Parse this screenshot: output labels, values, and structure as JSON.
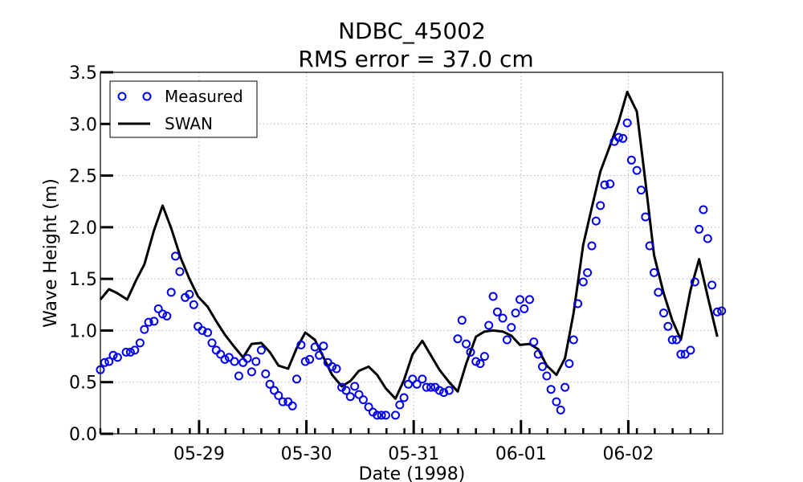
{
  "chart_data": {
    "type": "line",
    "title": "NDBC_45002",
    "subtitle": "RMS error = 37.0 cm",
    "xlabel": "Date (1998)",
    "ylabel": "Wave Height (m)",
    "xlim": [
      0.0,
      5.8
    ],
    "ylim": [
      0.0,
      3.5
    ],
    "x_ticks": [
      {
        "value": 0.92,
        "label": "05-29"
      },
      {
        "value": 1.92,
        "label": "05-30"
      },
      {
        "value": 2.92,
        "label": "05-31"
      },
      {
        "value": 3.92,
        "label": "06-01"
      },
      {
        "value": 4.92,
        "label": "06-02"
      }
    ],
    "y_ticks": [
      {
        "value": 0.0,
        "label": "0.0"
      },
      {
        "value": 0.5,
        "label": "0.5"
      },
      {
        "value": 1.0,
        "label": "1.0"
      },
      {
        "value": 1.5,
        "label": "1.5"
      },
      {
        "value": 2.0,
        "label": "2.0"
      },
      {
        "value": 2.5,
        "label": "2.5"
      },
      {
        "value": 3.0,
        "label": "3.0"
      },
      {
        "value": 3.5,
        "label": "3.5"
      }
    ],
    "grid": true,
    "legend": {
      "placement": "top-left",
      "entries": [
        "Measured",
        "SWAN"
      ]
    },
    "series": [
      {
        "name": "Measured",
        "style": "marker-circle-open",
        "color": "#0000ee",
        "points": [
          [
            0.0,
            0.62
          ],
          [
            0.04,
            0.69
          ],
          [
            0.08,
            0.7
          ],
          [
            0.12,
            0.76
          ],
          [
            0.16,
            0.74
          ],
          [
            0.24,
            0.79
          ],
          [
            0.28,
            0.79
          ],
          [
            0.32,
            0.81
          ],
          [
            0.37,
            0.88
          ],
          [
            0.41,
            1.01
          ],
          [
            0.45,
            1.08
          ],
          [
            0.5,
            1.09
          ],
          [
            0.54,
            1.21
          ],
          [
            0.58,
            1.16
          ],
          [
            0.62,
            1.14
          ],
          [
            0.66,
            1.37
          ],
          [
            0.7,
            1.72
          ],
          [
            0.74,
            1.57
          ],
          [
            0.79,
            1.32
          ],
          [
            0.83,
            1.35
          ],
          [
            0.87,
            1.25
          ],
          [
            0.91,
            1.04
          ],
          [
            0.95,
            1.0
          ],
          [
            1.0,
            0.98
          ],
          [
            1.04,
            0.88
          ],
          [
            1.08,
            0.81
          ],
          [
            1.12,
            0.77
          ],
          [
            1.16,
            0.72
          ],
          [
            1.2,
            0.74
          ],
          [
            1.25,
            0.7
          ],
          [
            1.29,
            0.56
          ],
          [
            1.33,
            0.69
          ],
          [
            1.37,
            0.73
          ],
          [
            1.41,
            0.6
          ],
          [
            1.45,
            0.7
          ],
          [
            1.5,
            0.81
          ],
          [
            1.54,
            0.58
          ],
          [
            1.58,
            0.48
          ],
          [
            1.62,
            0.42
          ],
          [
            1.66,
            0.37
          ],
          [
            1.7,
            0.31
          ],
          [
            1.75,
            0.31
          ],
          [
            1.79,
            0.27
          ],
          [
            1.83,
            0.53
          ],
          [
            1.87,
            0.86
          ],
          [
            1.91,
            0.7
          ],
          [
            1.95,
            0.72
          ],
          [
            2.0,
            0.84
          ],
          [
            2.04,
            0.76
          ],
          [
            2.08,
            0.85
          ],
          [
            2.12,
            0.69
          ],
          [
            2.16,
            0.65
          ],
          [
            2.2,
            0.63
          ],
          [
            2.25,
            0.45
          ],
          [
            2.29,
            0.42
          ],
          [
            2.33,
            0.36
          ],
          [
            2.37,
            0.46
          ],
          [
            2.41,
            0.38
          ],
          [
            2.45,
            0.33
          ],
          [
            2.5,
            0.26
          ],
          [
            2.54,
            0.21
          ],
          [
            2.58,
            0.18
          ],
          [
            2.62,
            0.18
          ],
          [
            2.66,
            0.18
          ],
          [
            2.75,
            0.18
          ],
          [
            2.79,
            0.28
          ],
          [
            2.83,
            0.35
          ],
          [
            2.87,
            0.48
          ],
          [
            2.91,
            0.53
          ],
          [
            2.95,
            0.48
          ],
          [
            3.0,
            0.53
          ],
          [
            3.04,
            0.45
          ],
          [
            3.08,
            0.45
          ],
          [
            3.12,
            0.45
          ],
          [
            3.16,
            0.42
          ],
          [
            3.2,
            0.4
          ],
          [
            3.25,
            0.42
          ],
          [
            3.33,
            0.92
          ],
          [
            3.37,
            1.1
          ],
          [
            3.41,
            0.87
          ],
          [
            3.45,
            0.79
          ],
          [
            3.5,
            0.7
          ],
          [
            3.54,
            0.68
          ],
          [
            3.58,
            0.75
          ],
          [
            3.62,
            1.05
          ],
          [
            3.66,
            1.33
          ],
          [
            3.7,
            1.18
          ],
          [
            3.75,
            1.12
          ],
          [
            3.79,
            0.91
          ],
          [
            3.83,
            1.03
          ],
          [
            3.87,
            1.17
          ],
          [
            3.91,
            1.3
          ],
          [
            3.95,
            1.21
          ],
          [
            4.0,
            1.3
          ],
          [
            4.04,
            0.89
          ],
          [
            4.08,
            0.77
          ],
          [
            4.12,
            0.65
          ],
          [
            4.16,
            0.56
          ],
          [
            4.2,
            0.43
          ],
          [
            4.25,
            0.31
          ],
          [
            4.29,
            0.23
          ],
          [
            4.33,
            0.45
          ],
          [
            4.37,
            0.68
          ],
          [
            4.41,
            0.91
          ],
          [
            4.45,
            1.26
          ],
          [
            4.5,
            1.47
          ],
          [
            4.54,
            1.56
          ],
          [
            4.58,
            1.82
          ],
          [
            4.62,
            2.06
          ],
          [
            4.66,
            2.21
          ],
          [
            4.7,
            2.41
          ],
          [
            4.75,
            2.42
          ],
          [
            4.79,
            2.83
          ],
          [
            4.83,
            2.87
          ],
          [
            4.87,
            2.86
          ],
          [
            4.91,
            3.01
          ],
          [
            4.95,
            2.65
          ],
          [
            5.0,
            2.55
          ],
          [
            5.04,
            2.36
          ],
          [
            5.08,
            2.1
          ],
          [
            5.12,
            1.82
          ],
          [
            5.16,
            1.56
          ],
          [
            5.2,
            1.37
          ],
          [
            5.25,
            1.17
          ],
          [
            5.29,
            1.04
          ],
          [
            5.33,
            0.91
          ],
          [
            5.37,
            0.91
          ],
          [
            5.41,
            0.77
          ],
          [
            5.45,
            0.77
          ],
          [
            5.5,
            0.81
          ],
          [
            5.54,
            1.47
          ],
          [
            5.58,
            1.98
          ],
          [
            5.62,
            2.17
          ],
          [
            5.66,
            1.89
          ],
          [
            5.7,
            1.44
          ],
          [
            5.75,
            1.18
          ],
          [
            5.79,
            1.19
          ]
        ]
      },
      {
        "name": "SWAN",
        "style": "line",
        "color": "#000000",
        "points": [
          [
            0.0,
            1.3
          ],
          [
            0.08,
            1.4
          ],
          [
            0.16,
            1.36
          ],
          [
            0.25,
            1.3
          ],
          [
            0.33,
            1.48
          ],
          [
            0.41,
            1.64
          ],
          [
            0.5,
            1.97
          ],
          [
            0.58,
            2.21
          ],
          [
            0.66,
            1.99
          ],
          [
            0.75,
            1.7
          ],
          [
            0.83,
            1.5
          ],
          [
            0.91,
            1.33
          ],
          [
            1.0,
            1.23
          ],
          [
            1.08,
            1.09
          ],
          [
            1.16,
            0.96
          ],
          [
            1.25,
            0.84
          ],
          [
            1.33,
            0.74
          ],
          [
            1.41,
            0.87
          ],
          [
            1.5,
            0.88
          ],
          [
            1.58,
            0.79
          ],
          [
            1.66,
            0.66
          ],
          [
            1.75,
            0.63
          ],
          [
            1.83,
            0.83
          ],
          [
            1.91,
            0.98
          ],
          [
            2.0,
            0.91
          ],
          [
            2.08,
            0.74
          ],
          [
            2.16,
            0.57
          ],
          [
            2.25,
            0.46
          ],
          [
            2.33,
            0.51
          ],
          [
            2.41,
            0.61
          ],
          [
            2.5,
            0.65
          ],
          [
            2.58,
            0.57
          ],
          [
            2.66,
            0.44
          ],
          [
            2.75,
            0.34
          ],
          [
            2.83,
            0.52
          ],
          [
            2.91,
            0.77
          ],
          [
            3.0,
            0.9
          ],
          [
            3.08,
            0.76
          ],
          [
            3.16,
            0.62
          ],
          [
            3.25,
            0.5
          ],
          [
            3.33,
            0.41
          ],
          [
            3.41,
            0.68
          ],
          [
            3.5,
            0.94
          ],
          [
            3.58,
            0.99
          ],
          [
            3.66,
            1.0
          ],
          [
            3.75,
            0.99
          ],
          [
            3.83,
            0.95
          ],
          [
            3.91,
            0.86
          ],
          [
            4.0,
            0.87
          ],
          [
            4.08,
            0.82
          ],
          [
            4.16,
            0.66
          ],
          [
            4.25,
            0.57
          ],
          [
            4.33,
            0.73
          ],
          [
            4.41,
            1.17
          ],
          [
            4.5,
            1.83
          ],
          [
            4.58,
            2.19
          ],
          [
            4.66,
            2.54
          ],
          [
            4.75,
            2.79
          ],
          [
            4.83,
            3.02
          ],
          [
            4.91,
            3.31
          ],
          [
            5.0,
            3.12
          ],
          [
            5.08,
            2.44
          ],
          [
            5.16,
            1.73
          ],
          [
            5.25,
            1.36
          ],
          [
            5.33,
            1.1
          ],
          [
            5.41,
            0.91
          ],
          [
            5.5,
            1.39
          ],
          [
            5.58,
            1.69
          ],
          [
            5.66,
            1.33
          ],
          [
            5.75,
            0.94
          ]
        ]
      }
    ]
  }
}
